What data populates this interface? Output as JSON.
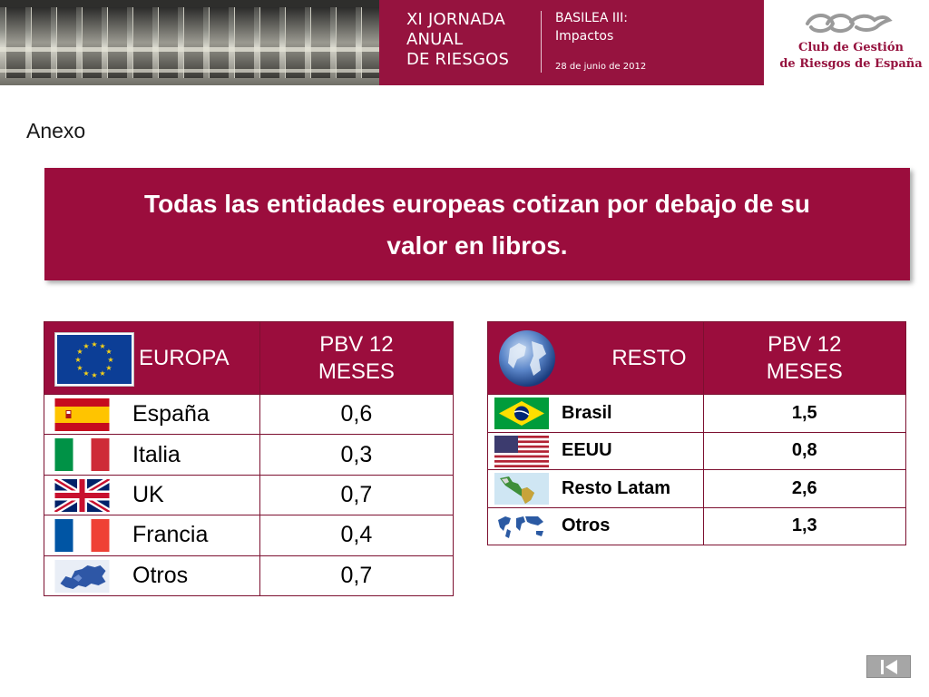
{
  "header": {
    "event_lines": [
      "XI JORNADA",
      "ANUAL",
      "DE RIESGOS"
    ],
    "subtitle_lines": [
      "BASILEA III:",
      "Impactos"
    ],
    "date": "28 de junio de 2012",
    "organizer_lines": [
      "Club de Gestión",
      "de Riesgos de España"
    ],
    "brand_color": "#96133f",
    "logo_icon": "club-logo-icon"
  },
  "section_label": "Anexo",
  "headline_lines": [
    "Todas las entidades europeas cotizan por debajo de su",
    "valor en libros."
  ],
  "europa_table": {
    "header_icon": "eu-flag-icon",
    "col1": "EUROPA",
    "col2_lines": [
      "PBV 12",
      "MESES"
    ],
    "rows": [
      {
        "flag": "spain-flag-icon",
        "name": "España",
        "value": "0,6"
      },
      {
        "flag": "italy-flag-icon",
        "name": "Italia",
        "value": "0,3"
      },
      {
        "flag": "uk-flag-icon",
        "name": "UK",
        "value": "0,7"
      },
      {
        "flag": "france-flag-icon",
        "name": "Francia",
        "value": "0,4"
      },
      {
        "flag": "europe-map-icon",
        "name": "Otros",
        "value": "0,7"
      }
    ]
  },
  "resto_table": {
    "header_icon": "globe-icon",
    "col1": "RESTO",
    "col2_lines": [
      "PBV 12",
      "MESES"
    ],
    "rows": [
      {
        "flag": "brazil-flag-icon",
        "name": "Brasil",
        "value": "1,5"
      },
      {
        "flag": "usa-flag-icon",
        "name": "EEUU",
        "value": "0,8"
      },
      {
        "flag": "latam-map-icon",
        "name": "Resto Latam",
        "value": "2,6"
      },
      {
        "flag": "world-map-icon",
        "name": "Otros",
        "value": "1,3"
      }
    ]
  },
  "navigation": {
    "first_slide_icon": "first-slide-icon"
  }
}
